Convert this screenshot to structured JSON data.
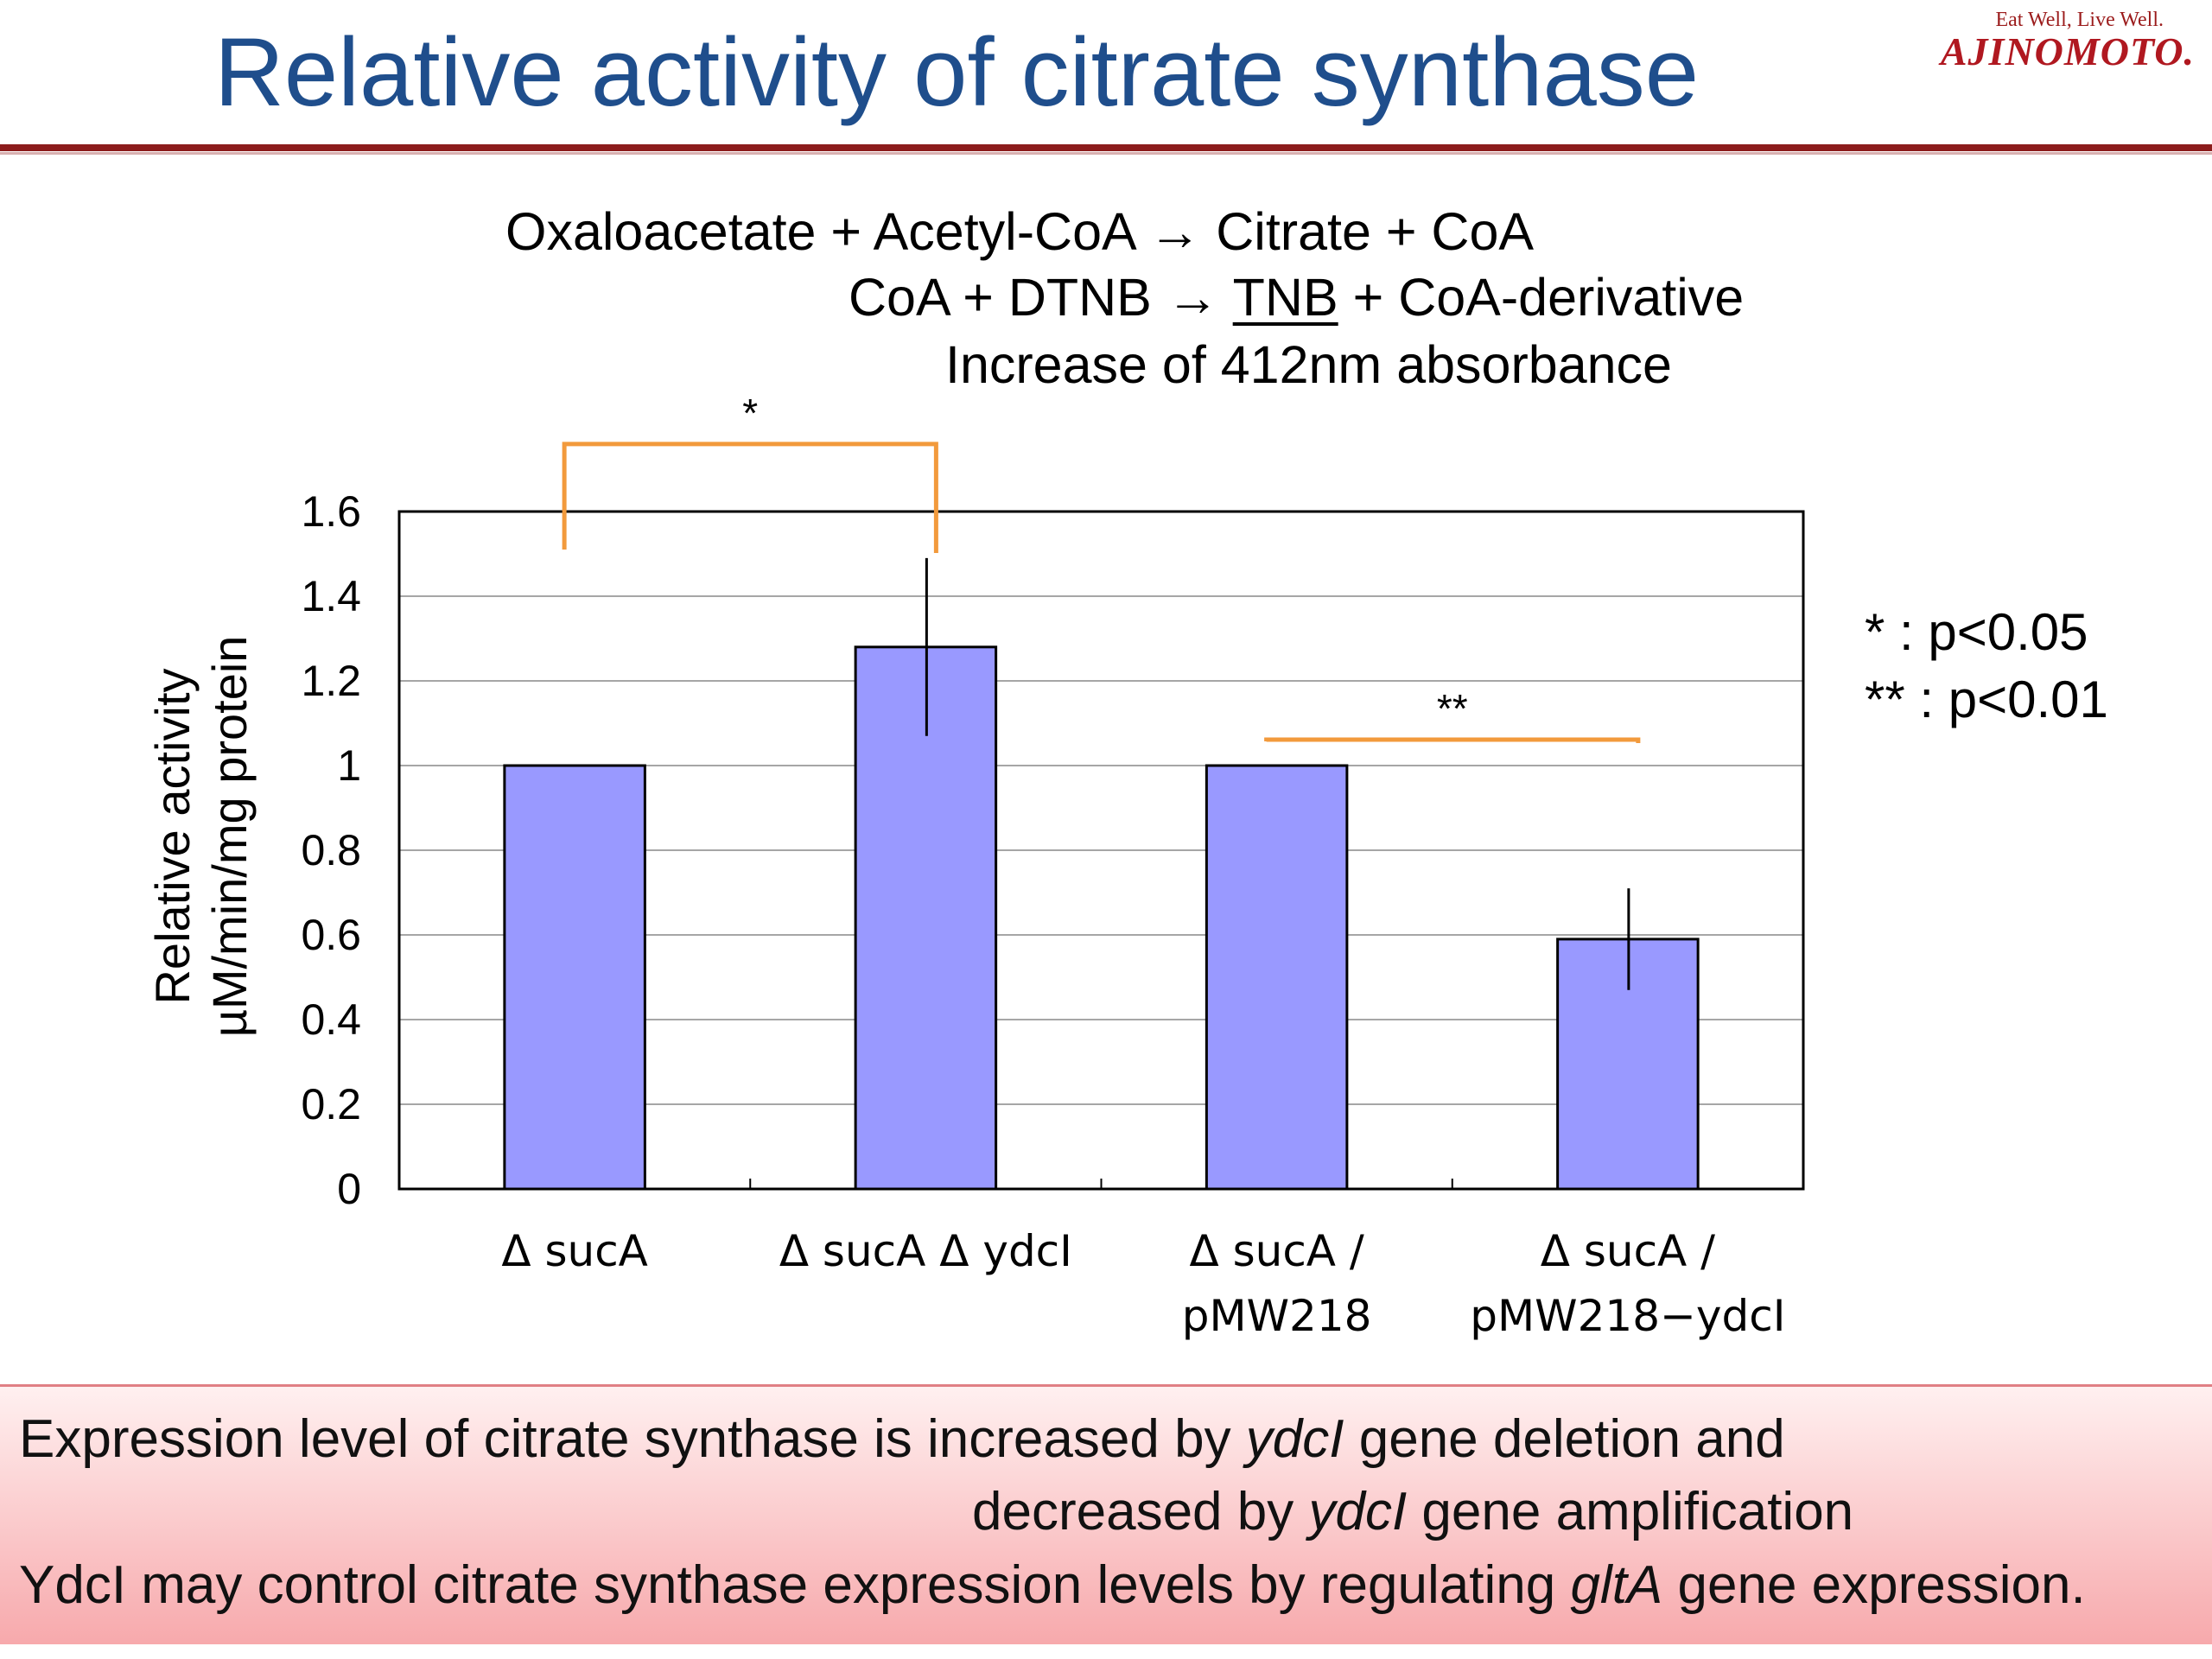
{
  "slide": {
    "title": "Relative activity of citrate synthase",
    "logo_tagline": "Eat Well, Live Well.",
    "logo_brand": "AJINOMOTO."
  },
  "reaction": {
    "line1": "Oxaloacetate + Acetyl-CoA → Citrate   + CoA",
    "line2_pre": "CoA + DTNB → ",
    "line2_product": "TNB",
    "line2_post": " + CoA-derivative",
    "line3": "Increase of 412nm absorbance"
  },
  "legend": {
    "one_star": "*   : p<0.05",
    "two_star": "** : p<0.01"
  },
  "chart_data": {
    "type": "bar",
    "title": "",
    "ylabel": "Relative activity",
    "ylabel2": "µM/min/mg protein",
    "ylim": [
      0,
      1.6
    ],
    "yticks": [
      0,
      0.2,
      0.4,
      0.6,
      0.8,
      1,
      1.2,
      1.4,
      1.6
    ],
    "ytick_labels": [
      "0",
      "0.2",
      "0.4",
      "0.6",
      "0.8",
      "1",
      "1.2",
      "1.4",
      "1.6"
    ],
    "categories": [
      {
        "line1": "Δ sucA",
        "line2": ""
      },
      {
        "line1": "Δ sucA Δ ydcI",
        "line2": ""
      },
      {
        "line1": "Δ sucA /",
        "line2": "pMW218"
      },
      {
        "line1": "Δ sucA /",
        "line2": "pMW218−ydcI"
      }
    ],
    "values": [
      1.0,
      1.28,
      1.0,
      0.59
    ],
    "errors": [
      0,
      0.21,
      0,
      0.12
    ],
    "bar_color": "#9999ff",
    "bracket_color": "#f29a3c",
    "significance": [
      {
        "from": 0,
        "to": 1,
        "label": "*"
      },
      {
        "from": 2,
        "to": 3,
        "label": "**"
      }
    ],
    "grid": true
  },
  "conclusion": {
    "p1_a": "Expression level of citrate synthase is increased by ",
    "p1_gene": "ydcI",
    "p1_b": " gene deletion and",
    "p2_a": "decreased by ",
    "p2_gene": "ydcI",
    "p2_b": " gene amplification",
    "p3_a": "YdcI may control citrate synthase expression levels by regulating ",
    "p3_gene": "gltA",
    "p3_b": " gene expression."
  }
}
